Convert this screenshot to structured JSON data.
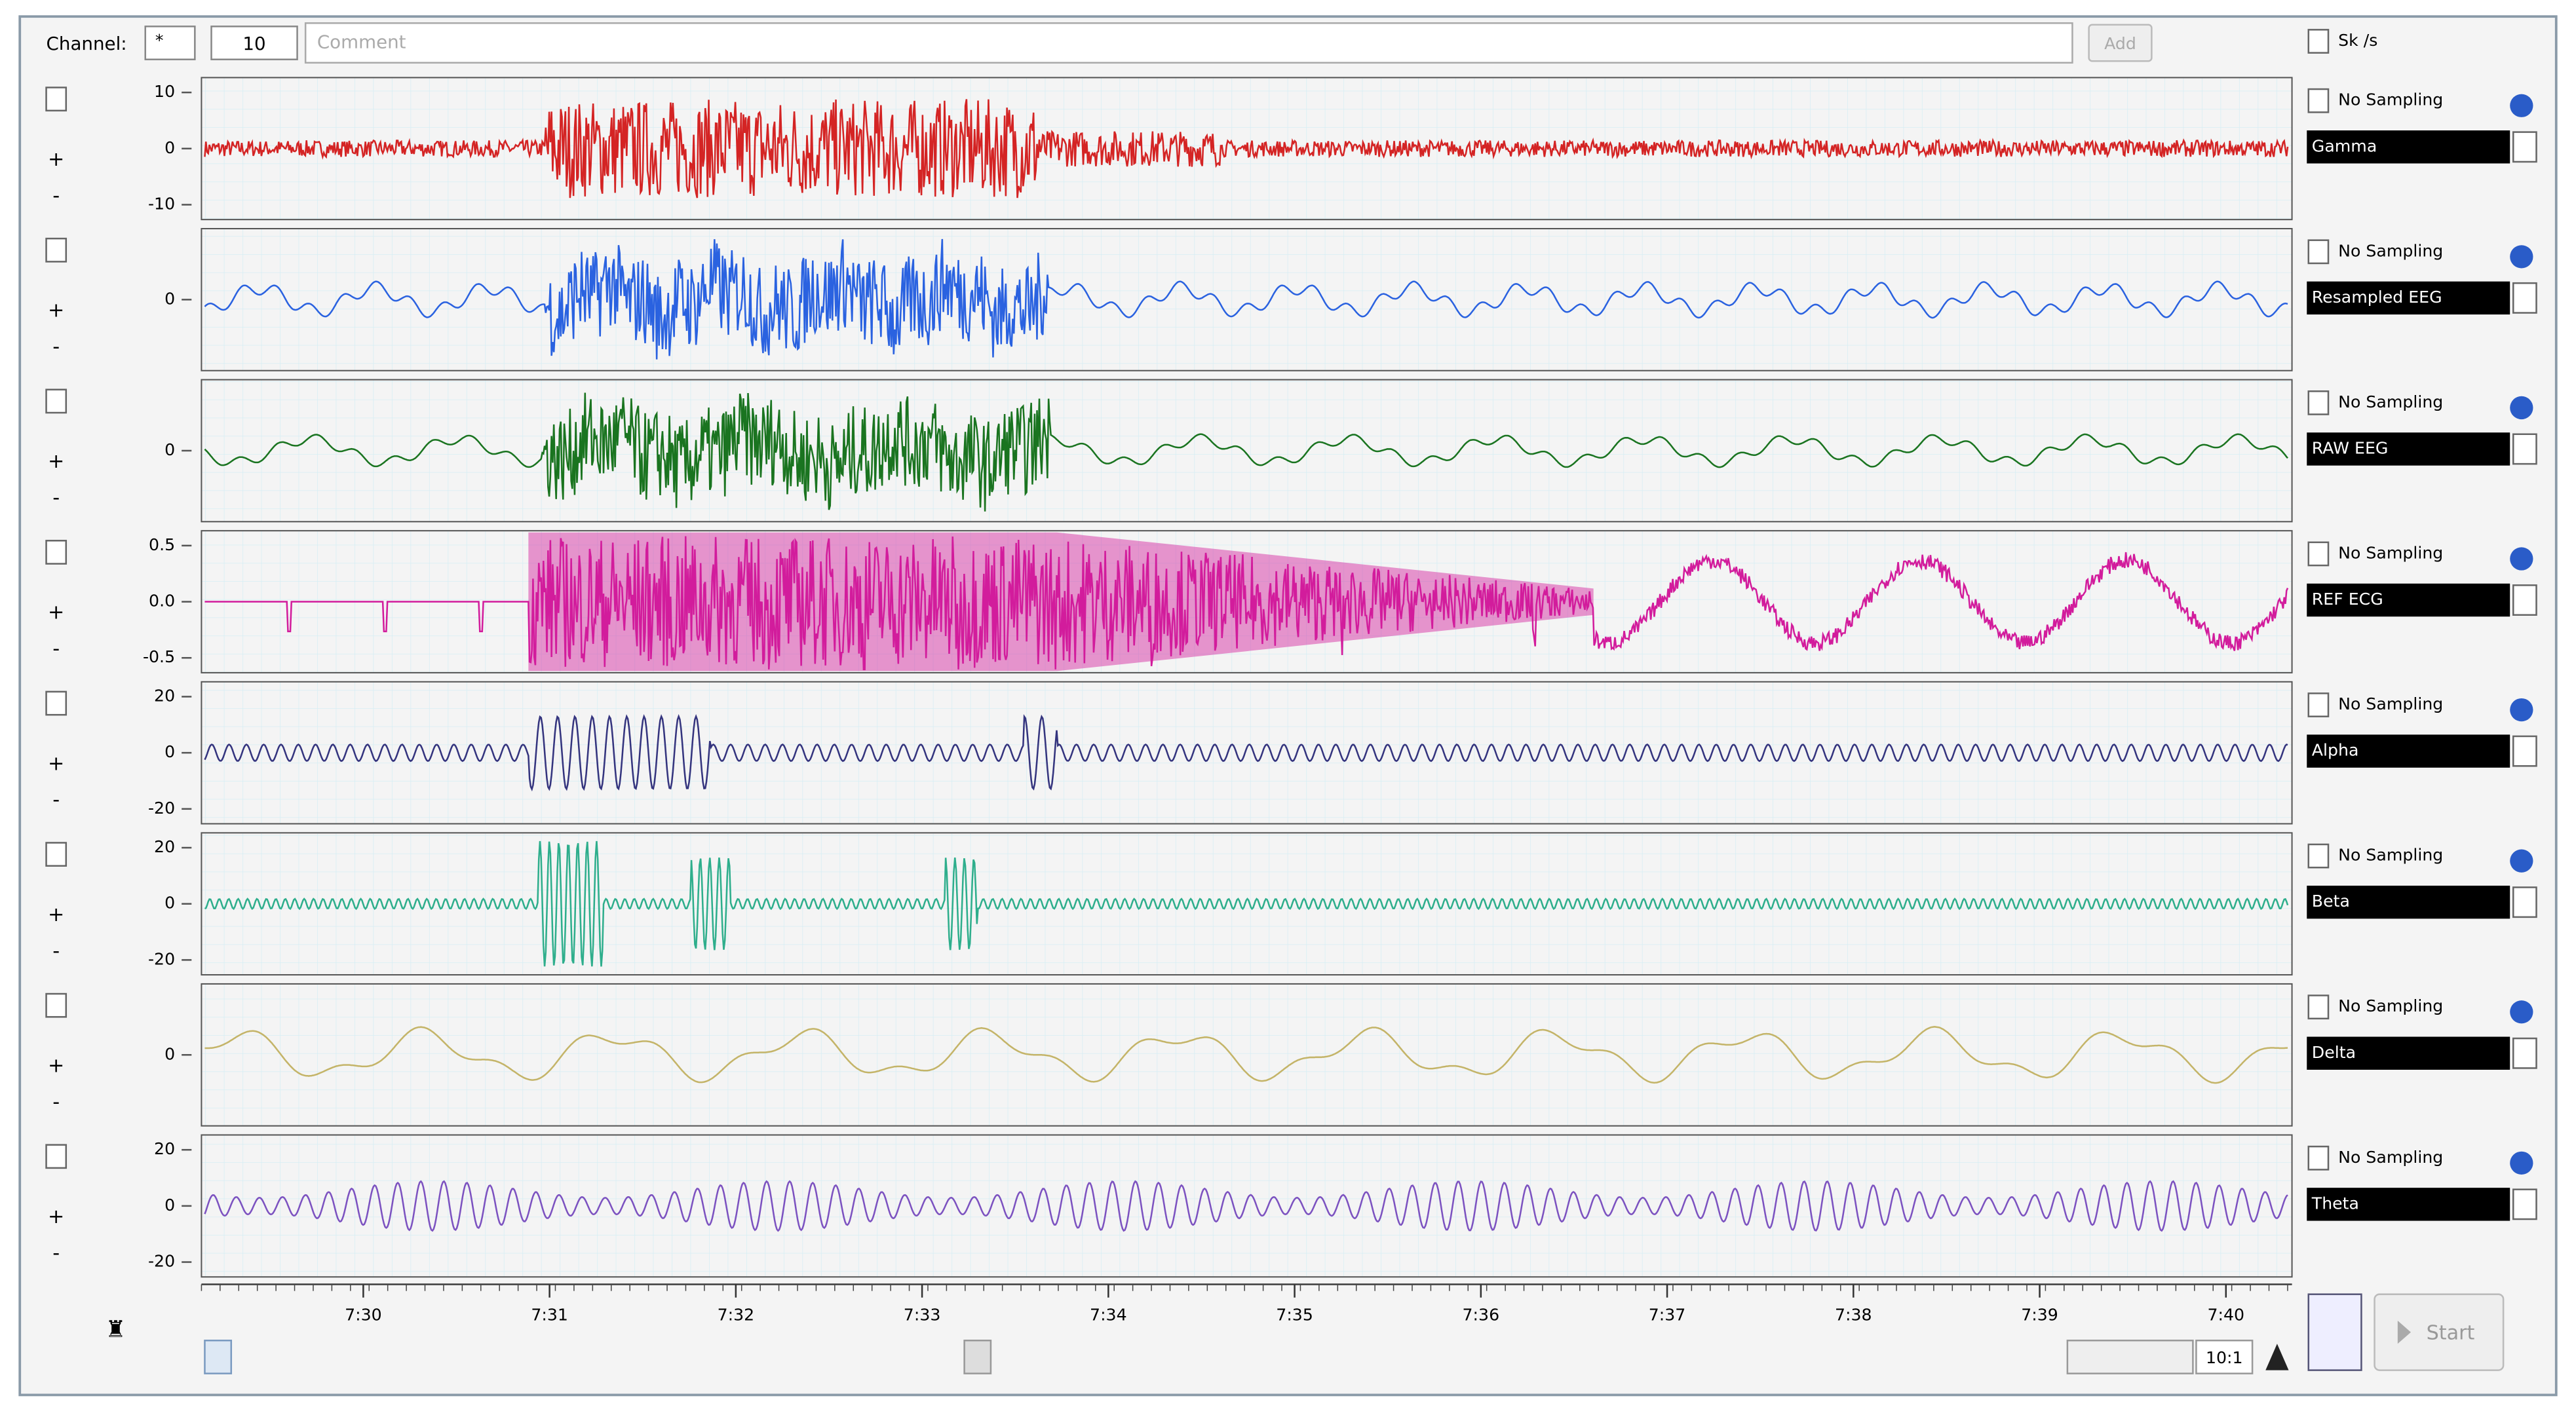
{
  "toolbar": {
    "channel_label": "Channel:",
    "channel_value": "*",
    "count": "10",
    "comment": "Comment",
    "add": "Add",
    "rate": "Sk /s"
  },
  "channels": [
    {
      "ticks": [
        "10",
        "0",
        "-10"
      ],
      "sampling": "No Sampling",
      "name": "Gamma",
      "color": "#d42424"
    },
    {
      "ticks": [
        "0"
      ],
      "sampling": "No Sampling",
      "name": "Resampled EEG",
      "color": "#2a62e0"
    },
    {
      "ticks": [
        "0"
      ],
      "sampling": "No Sampling",
      "name": "RAW EEG",
      "color": "#1a7420"
    },
    {
      "ticks": [
        "0.5",
        "0.0",
        "-0.5"
      ],
      "sampling": "No Sampling",
      "name": "REF ECG",
      "color": "#d21c9c"
    },
    {
      "ticks": [
        "20",
        "0",
        "-20"
      ],
      "sampling": "No Sampling",
      "name": "Alpha",
      "color": "#34347e"
    },
    {
      "ticks": [
        "20",
        "0",
        "-20"
      ],
      "sampling": "No Sampling",
      "name": "Beta",
      "color": "#2eae8c"
    },
    {
      "ticks": [
        "0"
      ],
      "sampling": "No Sampling",
      "name": "Delta",
      "color": "#c4b468"
    },
    {
      "ticks": [
        "20",
        "0",
        "-20"
      ],
      "sampling": "No Sampling",
      "name": "Theta",
      "color": "#7c52c0"
    }
  ],
  "time_axis": [
    "7:30",
    "7:31",
    "7:32",
    "7:33",
    "7:34",
    "7:35",
    "7:36",
    "7:37",
    "7:38",
    "7:39",
    "7:40"
  ],
  "footer": {
    "zoom": "10:1",
    "start": "Start"
  }
}
